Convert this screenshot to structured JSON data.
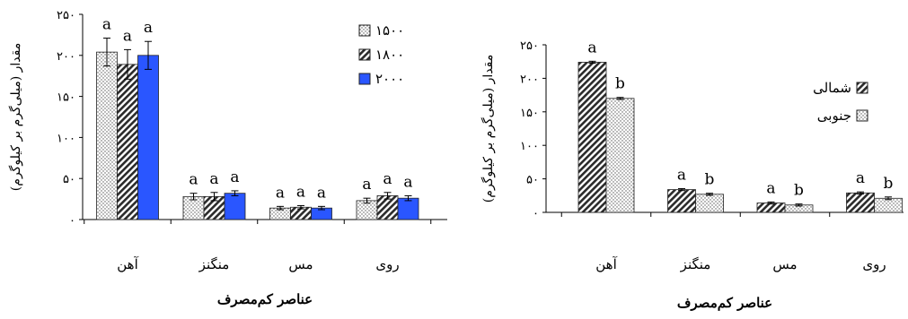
{
  "charts": [
    {
      "type": "bar",
      "ylabel": "مقدار (میلی‌گرم بر کیلوگرم)",
      "xlabel": "عناصر کم‌مصرف",
      "categories": [
        "آهن",
        "منگنز",
        "مس",
        "روی"
      ],
      "yticks": [
        "۰",
        "۵۰",
        "۱۰۰",
        "۱۵۰",
        "۲۰۰",
        "۲۵۰"
      ],
      "ylim": [
        0,
        250
      ],
      "grid": false,
      "legend_position": "top-right",
      "series": [
        {
          "name": "۱۵۰۰",
          "pattern": "dots",
          "color": "#ffffff",
          "values": [
            204,
            28,
            14,
            23
          ],
          "errors": [
            17,
            4,
            2,
            3
          ],
          "labels": [
            "a",
            "a",
            "a",
            "a"
          ]
        },
        {
          "name": "۱۸۰۰",
          "pattern": "diag",
          "color": "#ffffff",
          "values": [
            189,
            28,
            15,
            29
          ],
          "errors": [
            18,
            5,
            2,
            4
          ],
          "labels": [
            "a",
            "a",
            "a",
            "a"
          ]
        },
        {
          "name": "۲۰۰۰",
          "pattern": "solid",
          "color": "#2a56ff",
          "values": [
            200,
            32,
            14,
            26
          ],
          "errors": [
            17,
            3,
            2,
            3
          ],
          "labels": [
            "a",
            "a",
            "a",
            "a"
          ]
        }
      ]
    },
    {
      "type": "bar",
      "ylabel": "مقدار (میلی‌گرم بر کیلوگرم)",
      "xlabel": "عناصر کم‌مصرف",
      "categories": [
        "آهن",
        "منگنز",
        "مس",
        "روی"
      ],
      "yticks": [
        "۰",
        "۵۰",
        "۱۰۰",
        "۱۵۰",
        "۲۰۰",
        "۲۵۰"
      ],
      "ylim": [
        0,
        250
      ],
      "grid": false,
      "legend_position": "top-right",
      "series": [
        {
          "name": "شمالی",
          "pattern": "diag",
          "color": "#ffffff",
          "values": [
            224,
            34,
            14,
            29
          ],
          "errors": [
            1.5,
            1.5,
            1.5,
            1.5
          ],
          "labels": [
            "a",
            "a",
            "a",
            "a"
          ]
        },
        {
          "name": "جنوبی",
          "pattern": "dots",
          "color": "#ffffff",
          "values": [
            170,
            27,
            11,
            21
          ],
          "errors": [
            1.5,
            1.5,
            1.5,
            2
          ],
          "labels": [
            "b",
            "b",
            "b",
            "b"
          ]
        }
      ]
    }
  ]
}
